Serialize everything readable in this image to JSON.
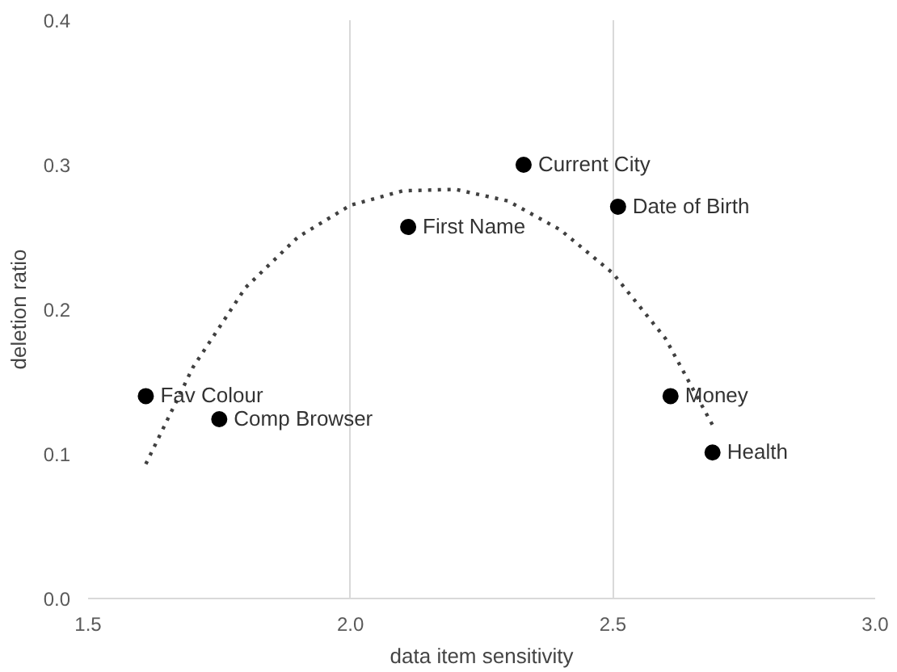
{
  "chart_data": {
    "type": "scatter",
    "xlabel": "data item sensitivity",
    "ylabel": "deletion ratio",
    "xlim": [
      1.5,
      3.0
    ],
    "ylim": [
      0.0,
      0.4
    ],
    "xticks": [
      {
        "value": 1.5,
        "label": "1.5"
      },
      {
        "value": 2.0,
        "label": "2.0"
      },
      {
        "value": 2.5,
        "label": "2.5"
      },
      {
        "value": 3.0,
        "label": "3.0"
      }
    ],
    "yticks": [
      {
        "value": 0.0,
        "label": "0.0"
      },
      {
        "value": 0.1,
        "label": "0.1"
      },
      {
        "value": 0.2,
        "label": "0.2"
      },
      {
        "value": 0.3,
        "label": "0.3"
      },
      {
        "value": 0.4,
        "label": "0.4"
      }
    ],
    "grid": "x",
    "marker": "circle",
    "series": [
      {
        "color": "#000000",
        "x": [
          1.61,
          1.75,
          2.11,
          2.33,
          2.51,
          2.61,
          2.69
        ],
        "values": [
          0.14,
          0.124,
          0.257,
          0.3,
          0.271,
          0.14,
          0.101
        ]
      },
      {
        "type": "line",
        "color": "#404040",
        "line_style": "dotted",
        "marker": "none",
        "x": [
          1.61,
          1.7,
          1.8,
          1.9,
          2.0,
          2.1,
          2.2,
          2.3,
          2.4,
          2.5,
          2.6,
          2.69
        ],
        "values": [
          0.093,
          0.16,
          0.215,
          0.25,
          0.272,
          0.282,
          0.283,
          0.275,
          0.255,
          0.225,
          0.18,
          0.12
        ]
      }
    ],
    "annotations": [
      {
        "text": "Fav Colour",
        "x": 1.61,
        "y": 0.14
      },
      {
        "text": "Comp Browser",
        "x": 1.75,
        "y": 0.124
      },
      {
        "text": "First Name",
        "x": 2.11,
        "y": 0.257
      },
      {
        "text": "Current City",
        "x": 2.33,
        "y": 0.3
      },
      {
        "text": "Date of Birth",
        "x": 2.51,
        "y": 0.271
      },
      {
        "text": "Money",
        "x": 2.61,
        "y": 0.14
      },
      {
        "text": "Health",
        "x": 2.69,
        "y": 0.101
      }
    ]
  }
}
